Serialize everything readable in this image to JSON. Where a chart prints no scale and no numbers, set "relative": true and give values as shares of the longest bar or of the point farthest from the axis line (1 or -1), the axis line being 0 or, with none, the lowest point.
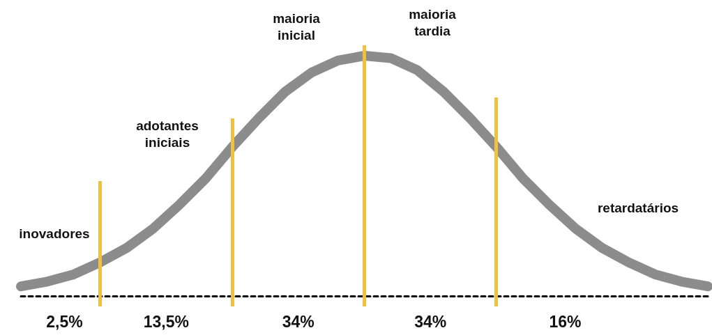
{
  "chart_data": {
    "type": "line",
    "relative": true,
    "categories": [
      null,
      null,
      null,
      null,
      null,
      null,
      null,
      null,
      null,
      null,
      null,
      null,
      null,
      null,
      null,
      null,
      null,
      null,
      null,
      null,
      null,
      null,
      null,
      null,
      null,
      null,
      null
    ],
    "series": [
      {
        "color": "#8c8c8c",
        "values": [
          0.04,
          0.06,
          0.09,
          0.14,
          0.2,
          0.28,
          0.38,
          0.49,
          0.62,
          0.74,
          0.85,
          0.93,
          0.98,
          1,
          0.99,
          0.94,
          0.85,
          0.74,
          0.62,
          0.49,
          0.38,
          0.28,
          0.2,
          0.14,
          0.09,
          0.06,
          0.04
        ]
      }
    ],
    "annotations": [
      "inovadores",
      "adotantes\niniciais",
      "maioria\ninicial",
      "maioria\ntardia",
      "retardatários",
      "2,5%",
      "13,5%",
      "34%",
      "34%",
      "16%"
    ]
  }
}
